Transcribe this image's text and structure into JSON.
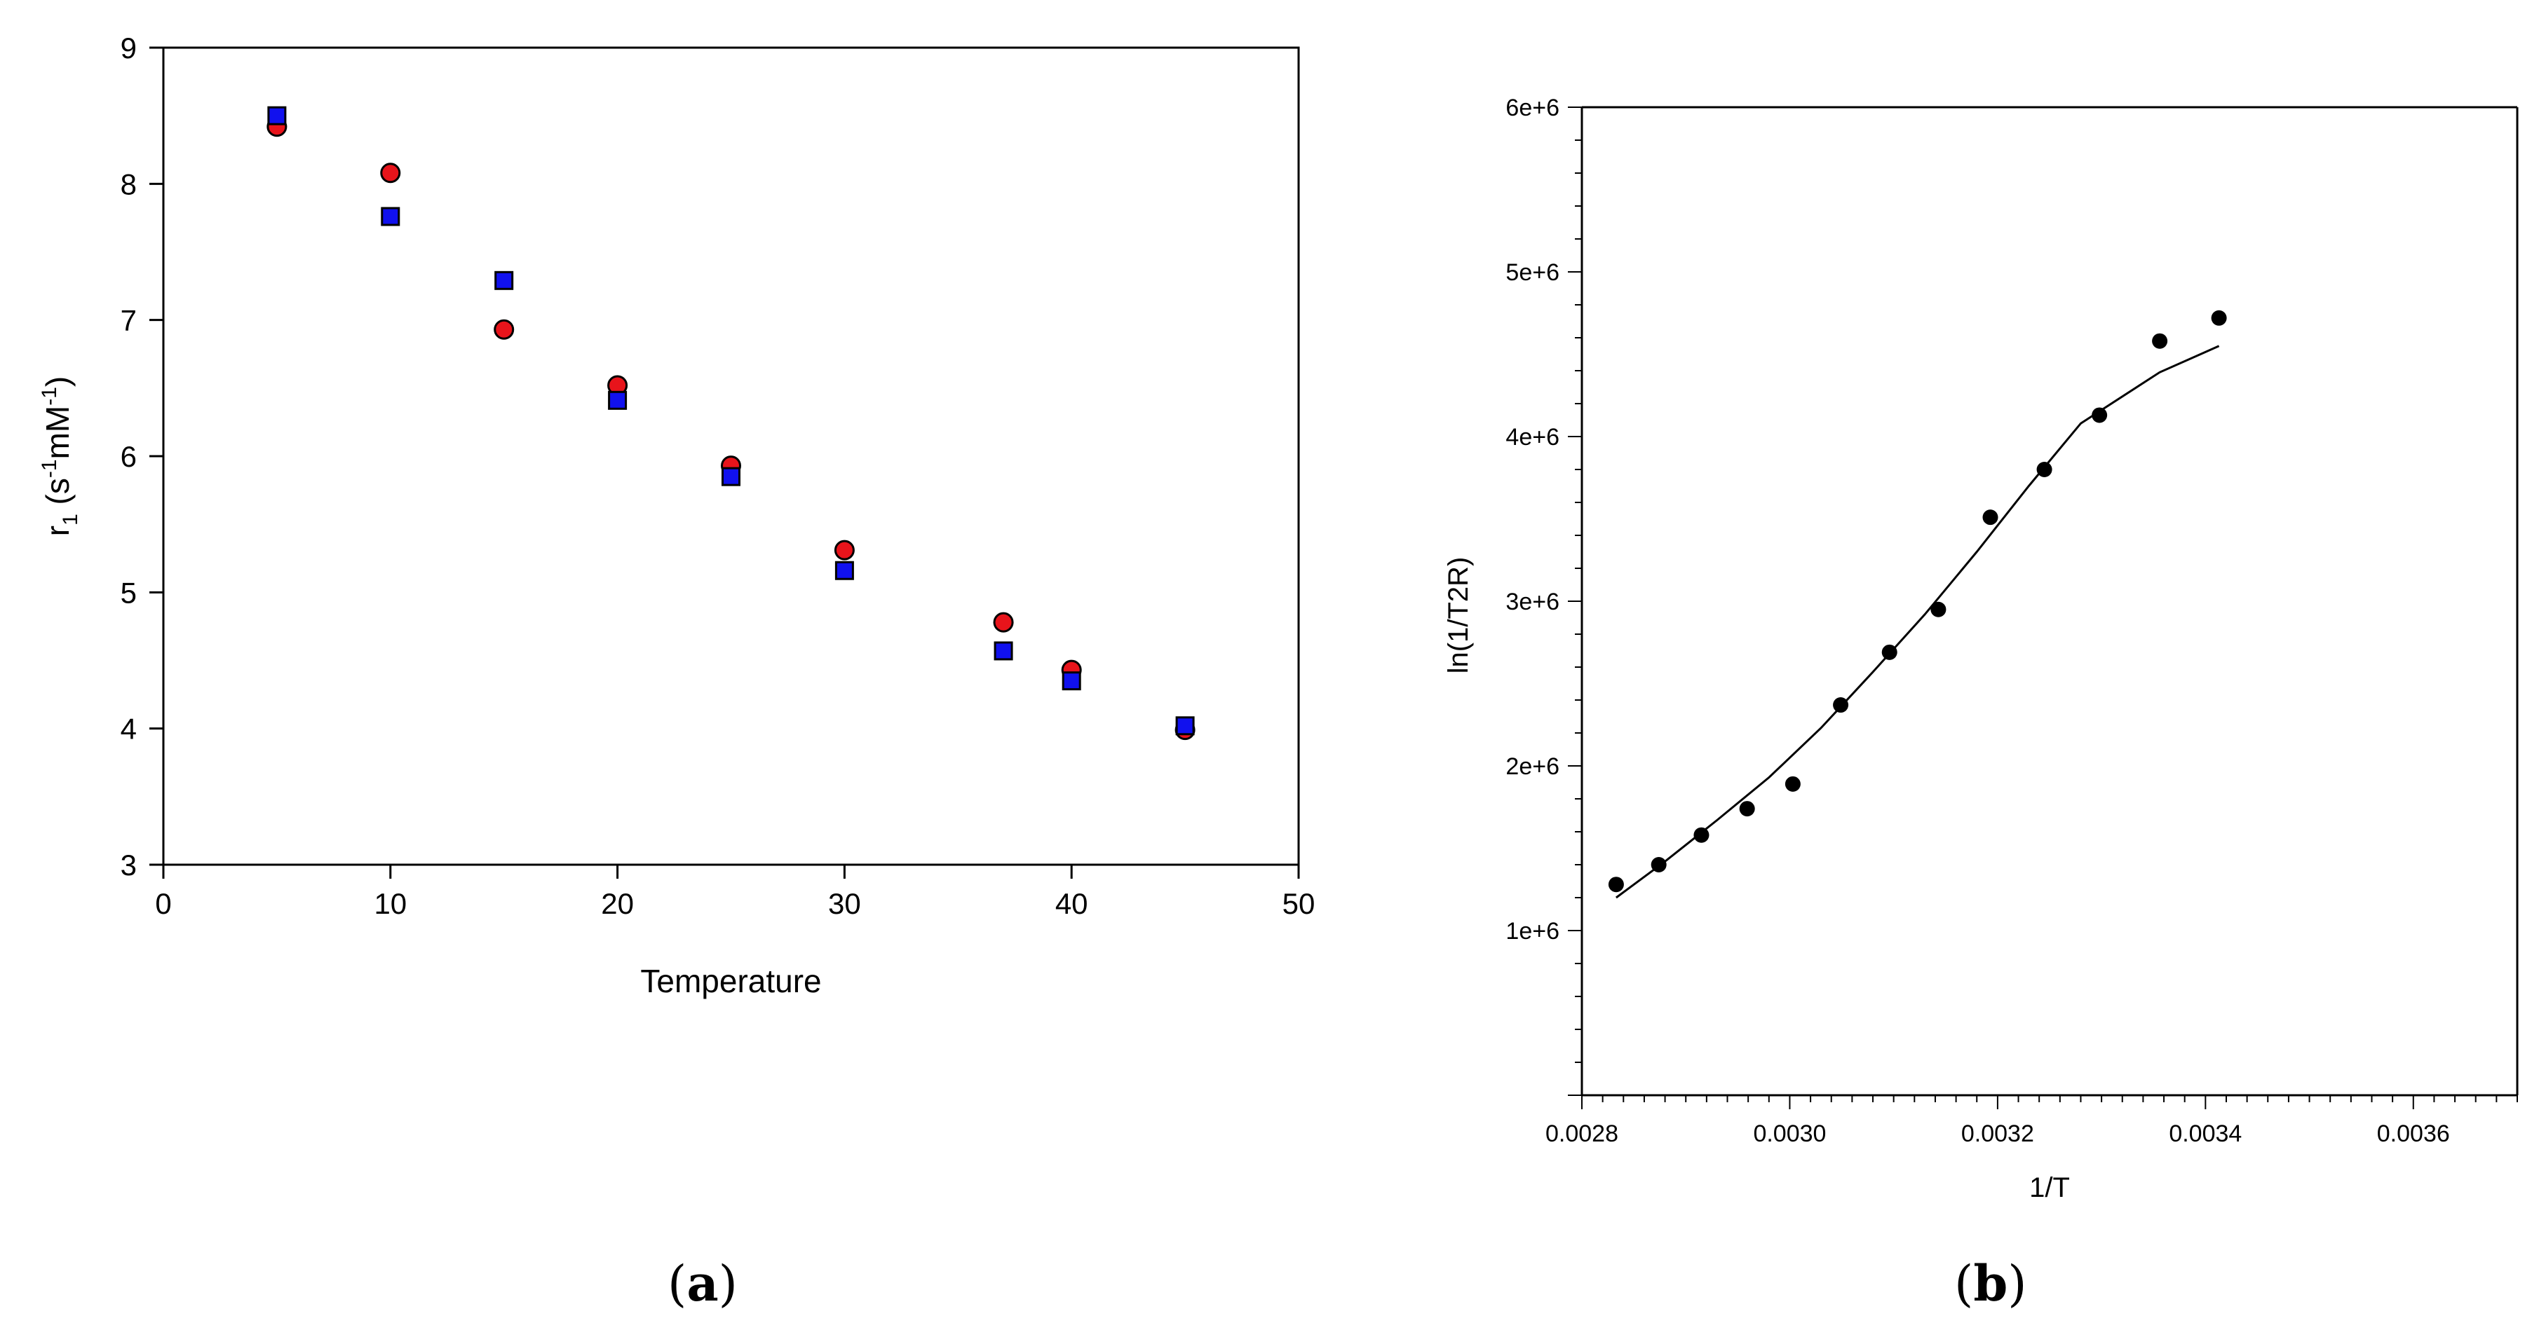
{
  "chart_data": [
    {
      "panel": "a",
      "type": "scatter",
      "title": "",
      "xlabel": "Temperature",
      "ylabel": "r",
      "ylabel_sub": "1",
      "ylabel_units_open": " (s",
      "ylabel_units_exp1": "-1",
      "ylabel_units_mid": "mM",
      "ylabel_units_exp2": "-1",
      "ylabel_units_close": ")",
      "xlim": [
        0,
        50
      ],
      "ylim": [
        3,
        9
      ],
      "xticks": [
        0,
        10,
        20,
        30,
        40,
        50
      ],
      "yticks": [
        3,
        4,
        5,
        6,
        7,
        8,
        9
      ],
      "grid": false,
      "series": [
        {
          "name": "red circles",
          "marker": "circle",
          "color": "#e8141b",
          "x": [
            5,
            10,
            15,
            20,
            25,
            30,
            37,
            40,
            45
          ],
          "y": [
            8.42,
            8.08,
            6.93,
            6.52,
            5.93,
            5.31,
            4.78,
            4.43,
            3.99
          ]
        },
        {
          "name": "blue squares",
          "marker": "square",
          "color": "#1111ee",
          "x": [
            5,
            10,
            15,
            20,
            25,
            30,
            37,
            40,
            45
          ],
          "y": [
            8.5,
            7.76,
            7.29,
            6.41,
            5.85,
            5.16,
            4.57,
            4.35,
            4.02
          ]
        }
      ]
    },
    {
      "panel": "b",
      "type": "scatter",
      "title": "",
      "xlabel": "1/T",
      "ylabel": "ln(1/T2R)",
      "xlim": [
        0.0028,
        0.0037
      ],
      "ylim": [
        0,
        6000000
      ],
      "xticks": [
        0.0028,
        0.003,
        0.0032,
        0.0034,
        0.0036
      ],
      "xtick_labels": [
        "0.0028",
        "0.0030",
        "0.0032",
        "0.0034",
        "0.0036"
      ],
      "yticks": [
        1000000,
        2000000,
        3000000,
        4000000,
        5000000,
        6000000
      ],
      "ytick_labels": [
        "1e+6",
        "2e+6",
        "3e+6",
        "4e+6",
        "5e+6",
        "6e+6"
      ],
      "grid": false,
      "series": [
        {
          "name": "data",
          "marker": "circle",
          "color": "#000000",
          "x": [
            0.002833,
            0.002874,
            0.002915,
            0.002959,
            0.003003,
            0.003049,
            0.003096,
            0.003143,
            0.003193,
            0.003245,
            0.003298,
            0.003356,
            0.003413
          ],
          "y": [
            1280000,
            1400000,
            1580000,
            1740000,
            1890000,
            2370000,
            2690000,
            2950000,
            3510000,
            3800000,
            4130000,
            4580000,
            4720000
          ]
        },
        {
          "name": "fit",
          "marker": "line",
          "color": "#000000",
          "x": [
            0.002833,
            0.00288,
            0.00293,
            0.00298,
            0.00303,
            0.00308,
            0.00313,
            0.00318,
            0.00323,
            0.00328,
            0.003356,
            0.003413
          ],
          "y": [
            1200000,
            1420000,
            1670000,
            1930000,
            2230000,
            2570000,
            2920000,
            3300000,
            3700000,
            4080000,
            4390000,
            4550000
          ]
        }
      ]
    }
  ],
  "labels": {
    "panel_a": "a",
    "panel_b": "b",
    "open": "(",
    "close": ")"
  }
}
